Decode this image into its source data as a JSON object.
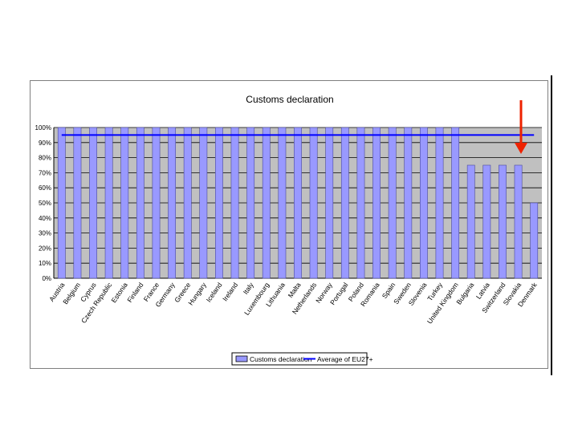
{
  "chart_data": {
    "type": "bar",
    "title": "Customs declaration",
    "categories": [
      "Austria",
      "Belgium",
      "Cyprus",
      "Czech Republic",
      "Estonia",
      "Finland",
      "France",
      "Germany",
      "Greece",
      "Hungary",
      "Iceland",
      "Ireland",
      "Italy",
      "Luxembourg",
      "Lithuania",
      "Malta",
      "Netherlands",
      "Norway",
      "Portugal",
      "Poland",
      "Romania",
      "Spain",
      "Sweden",
      "Slovenia",
      "Turkey",
      "United Kingdom",
      "Bulgaria",
      "Latvia",
      "Switzerland",
      "Slovakia",
      "Denmark"
    ],
    "series": [
      {
        "name": "Customs declaration",
        "type": "bar",
        "color": "#9999ff",
        "values": [
          100,
          100,
          100,
          100,
          100,
          100,
          100,
          100,
          100,
          100,
          100,
          100,
          100,
          100,
          100,
          100,
          100,
          100,
          100,
          100,
          100,
          100,
          100,
          100,
          100,
          100,
          75,
          75,
          75,
          75,
          50
        ]
      },
      {
        "name": "Average of EU27+",
        "type": "line",
        "color": "#0000ff",
        "values": [
          95,
          95,
          95,
          95,
          95,
          95,
          95,
          95,
          95,
          95,
          95,
          95,
          95,
          95,
          95,
          95,
          95,
          95,
          95,
          95,
          95,
          95,
          95,
          95,
          95,
          95,
          95,
          95,
          95,
          95,
          95
        ]
      }
    ],
    "yticks": [
      "0%",
      "10%",
      "20%",
      "30%",
      "40%",
      "50%",
      "60%",
      "70%",
      "80%",
      "90%",
      "100%"
    ],
    "ylim": [
      0,
      100
    ],
    "xlabel": "",
    "ylabel": "",
    "grid": true,
    "legend": "bottom",
    "plot_background": "#c0c0c0",
    "arrow_color": "#ee2200"
  }
}
